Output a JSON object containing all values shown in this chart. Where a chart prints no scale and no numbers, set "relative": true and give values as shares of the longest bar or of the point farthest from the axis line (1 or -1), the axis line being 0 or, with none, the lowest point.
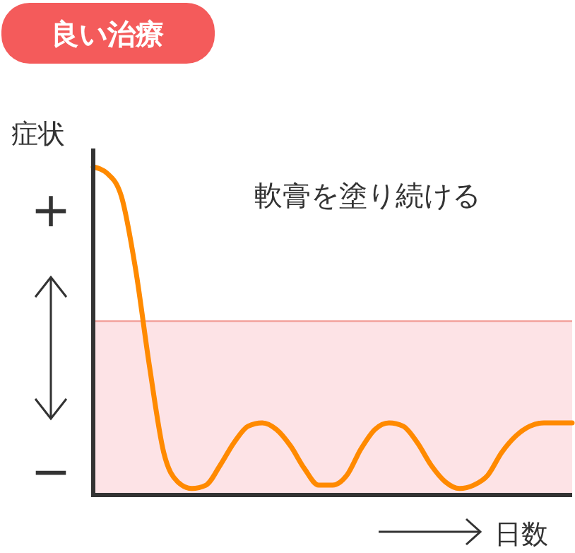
{
  "chart_data": {
    "type": "line",
    "title": "良い治療",
    "ylabel": "症状",
    "xlabel": "日数",
    "relative": true,
    "annotations": [
      "軟膏を塗り続ける",
      "+",
      "−"
    ],
    "categories": [
      null,
      null,
      null,
      null,
      null,
      null,
      null,
      null,
      null,
      null,
      null,
      null,
      null,
      null,
      null,
      null,
      null,
      null,
      null,
      null,
      null,
      null,
      null,
      null,
      null,
      null,
      null,
      null,
      null,
      null,
      null,
      null,
      null,
      null,
      null
    ],
    "series": [
      {
        "color": "#ff8a00",
        "values": [
          1.0,
          0.98,
          0.91,
          0.69,
          0.39,
          0.13,
          0.04,
          0.02,
          0.03,
          0.09,
          0.16,
          0.21,
          0.22,
          0.2,
          0.15,
          0.08,
          0.03,
          0.03,
          0.06,
          0.14,
          0.2,
          0.22,
          0.21,
          0.16,
          0.09,
          0.04,
          0.02,
          0.03,
          0.06,
          0.13,
          0.18,
          0.21,
          0.22,
          0.22,
          0.22
        ]
      }
    ],
    "bands": [
      {
        "axis": "y",
        "from": 0,
        "to": 0.53,
        "color": "#fde3e6"
      }
    ],
    "ref_lines": [
      {
        "axis": "y",
        "value": 0.53,
        "color": "#f2a09a"
      }
    ]
  }
}
